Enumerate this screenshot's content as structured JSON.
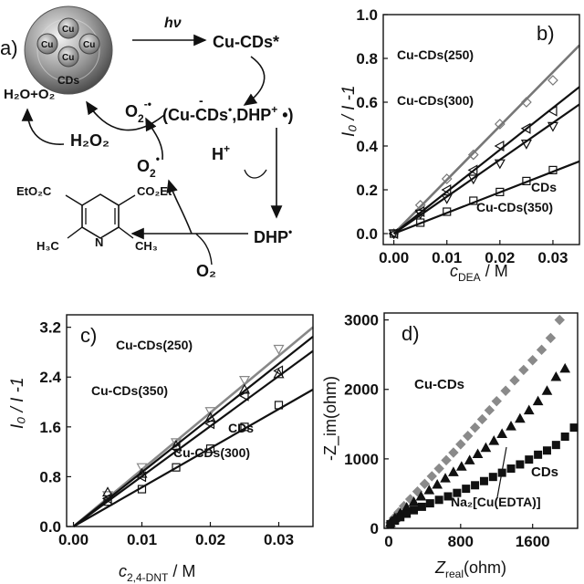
{
  "panel_a": {
    "letter": "a)",
    "particle_core_label": "Cu",
    "particle_shell_label": "CDs",
    "hv": "hν",
    "excited": "Cu-CDs*",
    "pair_prefix": "(Cu-CDs",
    "pair_minus": "-",
    "pair_dot": "•",
    "pair_mid": ",DHP",
    "pair_plus": "+",
    "pair_suffix": " •)",
    "o2_radical": "O",
    "o2_radical_sub": "2",
    "o2_radical_sup": "-•",
    "h2o_o2": "H₂O+O₂",
    "h2o2": "H₂O₂",
    "o2_dot_main": "O",
    "o2_dot_sub": "2",
    "o2_dot_sup": "•",
    "proton": "H",
    "proton_sup": "+",
    "dhp_dot": "DHP",
    "dhp_dot_sup": "•",
    "o2": "O₂",
    "mol_left_ester": "EtO₂C",
    "mol_right_ester": "CO₂Et",
    "mol_left_methyl": "H₃C",
    "mol_right_methyl": "CH₃",
    "mol_n": "N"
  },
  "panel_b": {
    "letter": "b)",
    "xlabel_main": "c",
    "xlabel_sub": "DEA",
    "xlabel_unit": " / M",
    "ylabel": "I₀ / I -1",
    "series_labels": [
      "Cu-CDs(250)",
      "Cu-CDs(300)",
      "CDs",
      "Cu-CDs(350)"
    ]
  },
  "panel_c": {
    "letter": "c)",
    "xlabel_main": "c",
    "xlabel_sub": "2,4-DNT",
    "xlabel_unit": " / M",
    "ylabel": "I₀ / I -1",
    "series_labels": [
      "Cu-CDs(250)",
      "Cu-CDs(350)",
      "CDs",
      "Cu-CDs(300)"
    ]
  },
  "panel_d": {
    "letter": "d)",
    "xlabel_main": "Z",
    "xlabel_sub": "real",
    "xlabel_unit": "(ohm)",
    "ylabel": "-Z_im(ohm)",
    "series_labels": [
      "Cu-CDs",
      "CDs",
      "Na₂[Cu(EDTA)]"
    ]
  },
  "chart_data": [
    {
      "panel": "b",
      "type": "scatter",
      "xlim": [
        -0.002,
        0.035
      ],
      "ylim": [
        -0.05,
        1.0
      ],
      "xticks": [
        0.0,
        0.01,
        0.02,
        0.03
      ],
      "xtick_labels": [
        "0.00",
        "0.01",
        "0.02",
        "0.03"
      ],
      "yticks": [
        0.0,
        0.2,
        0.4,
        0.6,
        0.8,
        1.0
      ],
      "ytick_labels": [
        "0.0",
        "0.2",
        "0.4",
        "0.6",
        "0.8",
        "1.0"
      ],
      "series": [
        {
          "name": "Cu-CDs(250)",
          "marker": "diamond",
          "color": "#777777",
          "line": true,
          "x": [
            0.0,
            0.005,
            0.01,
            0.015,
            0.02,
            0.025,
            0.03
          ],
          "y": [
            0.0,
            0.13,
            0.25,
            0.36,
            0.5,
            0.6,
            0.7
          ],
          "fit": [
            [
              0.0,
              0.0
            ],
            [
              0.035,
              0.86
            ]
          ]
        },
        {
          "name": "Cu-CDs(300)",
          "marker": "triangle-left",
          "color": "#111111",
          "line": true,
          "x": [
            0.0,
            0.005,
            0.01,
            0.015,
            0.02,
            0.025,
            0.03
          ],
          "y": [
            0.0,
            0.1,
            0.2,
            0.29,
            0.4,
            0.48,
            0.56
          ],
          "fit": [
            [
              0.0,
              0.0
            ],
            [
              0.035,
              0.67
            ]
          ]
        },
        {
          "name": "Cu-CDs(350)",
          "marker": "triangle-down",
          "color": "#111111",
          "line": true,
          "x": [
            0.0,
            0.005,
            0.01,
            0.015,
            0.02,
            0.025,
            0.03
          ],
          "y": [
            0.0,
            0.09,
            0.16,
            0.25,
            0.32,
            0.41,
            0.49
          ],
          "fit": [
            [
              0.0,
              0.0
            ],
            [
              0.035,
              0.59
            ]
          ]
        },
        {
          "name": "CDs",
          "marker": "square",
          "color": "#111111",
          "line": true,
          "x": [
            0.0,
            0.005,
            0.01,
            0.015,
            0.02,
            0.025,
            0.03
          ],
          "y": [
            0.0,
            0.05,
            0.1,
            0.15,
            0.19,
            0.24,
            0.29
          ],
          "fit": [
            [
              0.0,
              0.0
            ],
            [
              0.035,
              0.33
            ]
          ]
        }
      ]
    },
    {
      "panel": "c",
      "type": "scatter",
      "xlim": [
        -0.001,
        0.035
      ],
      "ylim": [
        0.0,
        3.4
      ],
      "xticks": [
        0.0,
        0.01,
        0.02,
        0.03
      ],
      "xtick_labels": [
        "0.00",
        "0.01",
        "0.02",
        "0.03"
      ],
      "yticks": [
        0.0,
        0.8,
        1.6,
        2.4,
        3.2
      ],
      "ytick_labels": [
        "0.0",
        "0.8",
        "1.6",
        "2.4",
        "3.2"
      ],
      "series": [
        {
          "name": "Cu-CDs(250)",
          "marker": "triangle-down",
          "color": "#888888",
          "line": true,
          "x": [
            0.005,
            0.01,
            0.015,
            0.02,
            0.025,
            0.03
          ],
          "y": [
            0.5,
            0.95,
            1.35,
            1.85,
            2.35,
            2.85
          ],
          "fit": [
            [
              0.0,
              0.0
            ],
            [
              0.035,
              3.2
            ]
          ]
        },
        {
          "name": "Cu-CDs(350)",
          "marker": "triangle-up",
          "color": "#111111",
          "line": true,
          "x": [
            0.005,
            0.01,
            0.015,
            0.02,
            0.025,
            0.03
          ],
          "y": [
            0.55,
            0.85,
            1.3,
            1.75,
            2.2,
            2.45
          ],
          "fit": [
            [
              0.0,
              0.0
            ],
            [
              0.035,
              3.05
            ]
          ]
        },
        {
          "name": "Cu-CDs(300)",
          "marker": "triangle-left",
          "color": "#111111",
          "line": true,
          "x": [
            0.005,
            0.01,
            0.015,
            0.02,
            0.025,
            0.03
          ],
          "y": [
            0.45,
            0.8,
            1.25,
            1.65,
            2.1,
            2.5
          ],
          "fit": [
            [
              0.0,
              0.0
            ],
            [
              0.035,
              2.82
            ]
          ]
        },
        {
          "name": "CDs",
          "marker": "square",
          "color": "#111111",
          "line": true,
          "x": [
            0.005,
            0.01,
            0.015,
            0.02,
            0.025,
            0.03
          ],
          "y": [
            0.4,
            0.6,
            0.95,
            1.25,
            1.6,
            1.95
          ],
          "fit": [
            [
              0.0,
              0.0
            ],
            [
              0.035,
              2.2
            ]
          ]
        }
      ]
    },
    {
      "panel": "d",
      "type": "scatter",
      "xlim": [
        -50,
        2100
      ],
      "ylim": [
        0,
        3100
      ],
      "xticks": [
        0,
        800,
        1600
      ],
      "xtick_labels": [
        "0",
        "800",
        "1600"
      ],
      "yticks": [
        0,
        1000,
        2000,
        3000
      ],
      "ytick_labels": [
        "0",
        "1000",
        "2000",
        "3000"
      ],
      "series": [
        {
          "name": "Cu-CDs",
          "marker": "diamond",
          "color": "#8a8a8a",
          "x": [
            20,
            60,
            110,
            170,
            240,
            320,
            400,
            480,
            560,
            640,
            720,
            800,
            880,
            960,
            1040,
            1120,
            1200,
            1300,
            1400,
            1500,
            1600,
            1700,
            1800,
            1900
          ],
          "y": [
            80,
            150,
            230,
            320,
            420,
            530,
            640,
            750,
            860,
            980,
            1090,
            1210,
            1330,
            1450,
            1570,
            1700,
            1830,
            1980,
            2130,
            2280,
            2420,
            2570,
            2740,
            3000
          ]
        },
        {
          "name": "Na₂[Cu(EDTA)]",
          "marker": "triangle-up",
          "color": "#111111",
          "x": [
            20,
            70,
            130,
            200,
            280,
            360,
            450,
            540,
            630,
            720,
            810,
            900,
            990,
            1080,
            1170,
            1260,
            1360,
            1460,
            1560,
            1660,
            1760,
            1860,
            1960
          ],
          "y": [
            80,
            150,
            220,
            300,
            380,
            460,
            550,
            630,
            720,
            810,
            890,
            980,
            1070,
            1160,
            1260,
            1360,
            1470,
            1580,
            1700,
            1830,
            1980,
            2180,
            2300
          ]
        },
        {
          "name": "CDs",
          "marker": "square",
          "color": "#111111",
          "x": [
            20,
            70,
            130,
            200,
            280,
            370,
            460,
            560,
            660,
            760,
            860,
            960,
            1060,
            1160,
            1260,
            1360,
            1460,
            1560,
            1660,
            1760,
            1860,
            1960,
            2060
          ],
          "y": [
            60,
            110,
            160,
            210,
            260,
            310,
            360,
            410,
            460,
            510,
            570,
            620,
            680,
            740,
            800,
            860,
            920,
            990,
            1060,
            1120,
            1200,
            1320,
            1450
          ]
        }
      ]
    }
  ]
}
